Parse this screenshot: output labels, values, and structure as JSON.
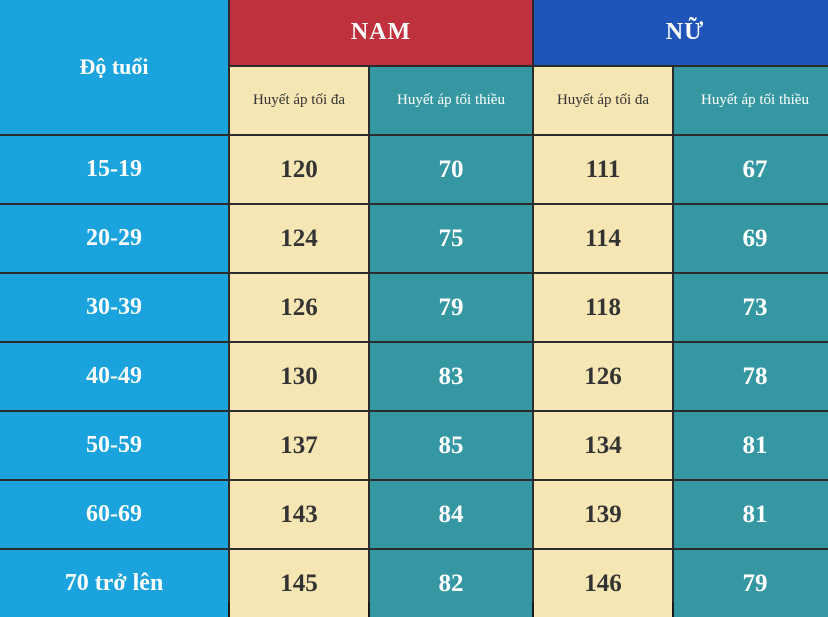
{
  "header": {
    "age_label": "Độ tuổi",
    "male_label": "NAM",
    "female_label": "NỮ",
    "systolic_label": "Huyết áp tối đa",
    "diastolic_label": "Huyết áp tối thiều"
  },
  "colors": {
    "age_blue": "#1aa3dd",
    "male_red": "#c0313e",
    "female_blue": "#1f55b8",
    "light_cell": "#f6e6b4",
    "teal_cell": "#3597a1"
  },
  "rows": [
    {
      "age": "15-19",
      "male_max": "120",
      "male_min": "70",
      "female_max": "111",
      "female_min": "67"
    },
    {
      "age": "20-29",
      "male_max": "124",
      "male_min": "75",
      "female_max": "114",
      "female_min": "69"
    },
    {
      "age": "30-39",
      "male_max": "126",
      "male_min": "79",
      "female_max": "118",
      "female_min": "73"
    },
    {
      "age": "40-49",
      "male_max": "130",
      "male_min": "83",
      "female_max": "126",
      "female_min": "78"
    },
    {
      "age": "50-59",
      "male_max": "137",
      "male_min": "85",
      "female_max": "134",
      "female_min": "81"
    },
    {
      "age": "60-69",
      "male_max": "143",
      "male_min": "84",
      "female_max": "139",
      "female_min": "81"
    },
    {
      "age": "70 trở lên",
      "male_max": "145",
      "male_min": "82",
      "female_max": "146",
      "female_min": "79"
    }
  ]
}
